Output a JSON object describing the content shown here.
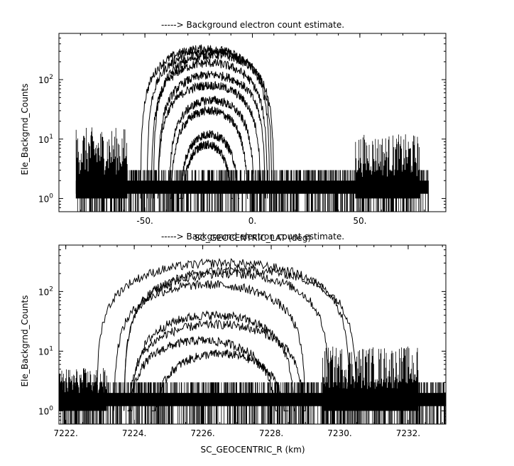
{
  "chart_data": [
    {
      "type": "line",
      "title": "-----> Background electron count estimate.",
      "xlabel": "SC_GEOCENTRIC_LAT (deg)",
      "ylabel": "Ele_Backgrnd_Counts",
      "xlim": [
        -90,
        90
      ],
      "ylim": [
        0.6,
        600
      ],
      "yscale": "log",
      "x_tick_values": [
        -50,
        0,
        50
      ],
      "x_tick_labels": [
        "-50.",
        "0.",
        "50."
      ],
      "y_tick_values": [
        1,
        10,
        100
      ],
      "y_tick_labels": [
        "10^0",
        "10^1",
        "10^2"
      ],
      "noise_floor": {
        "x_range": [
          -82,
          82
        ],
        "values": [
          1,
          2,
          3
        ]
      },
      "series": [
        {
          "center": -22,
          "half_width": 30,
          "peak": 330
        },
        {
          "center": -20,
          "half_width": 29,
          "peak": 300
        },
        {
          "center": -18,
          "half_width": 28,
          "peak": 260
        },
        {
          "center": -20,
          "half_width": 27,
          "peak": 190
        },
        {
          "center": -19,
          "half_width": 25,
          "peak": 120
        },
        {
          "center": -20,
          "half_width": 24,
          "peak": 80
        },
        {
          "center": -19,
          "half_width": 20,
          "peak": 45
        },
        {
          "center": -20,
          "half_width": 18,
          "peak": 30
        },
        {
          "center": -20,
          "half_width": 14,
          "peak": 12
        },
        {
          "center": -21,
          "half_width": 12,
          "peak": 8
        }
      ],
      "side_clusters": [
        {
          "x_range": [
            -82,
            -58
          ],
          "level": 10
        },
        {
          "x_range": [
            48,
            78
          ],
          "level": 8
        }
      ]
    },
    {
      "type": "line",
      "title": "-----> Background electron count estimate.",
      "xlabel": "SC_GEOCENTRIC_R (km)",
      "ylabel": "Ele_Backgrnd_Counts",
      "xlim": [
        7221.8,
        7233.1
      ],
      "ylim": [
        0.6,
        600
      ],
      "yscale": "log",
      "x_tick_values": [
        7222,
        7224,
        7226,
        7228,
        7230,
        7232
      ],
      "x_tick_labels": [
        "7222.",
        "7224.",
        "7226.",
        "7228.",
        "7230.",
        "7232."
      ],
      "y_tick_values": [
        1,
        10,
        100
      ],
      "y_tick_labels": [
        "10^0",
        "10^1",
        "10^2"
      ],
      "noise_floor": {
        "x_range": [
          7221.8,
          7233.1
        ],
        "values": [
          1,
          2,
          3
        ]
      },
      "series": [
        {
          "center": 7226.6,
          "half_width": 3.7,
          "peak": 300
        },
        {
          "center": 7227.1,
          "half_width": 3.4,
          "peak": 230
        },
        {
          "center": 7226.7,
          "half_width": 3.0,
          "peak": 200
        },
        {
          "center": 7226.2,
          "half_width": 2.8,
          "peak": 130
        },
        {
          "center": 7226.3,
          "half_width": 2.4,
          "peak": 40
        },
        {
          "center": 7226.4,
          "half_width": 2.6,
          "peak": 28
        },
        {
          "center": 7226.0,
          "half_width": 2.2,
          "peak": 15
        },
        {
          "center": 7226.5,
          "half_width": 2.0,
          "peak": 9
        }
      ],
      "side_clusters": [
        {
          "x_range": [
            7221.8,
            7223.2
          ],
          "level": 4
        },
        {
          "x_range": [
            7229.5,
            7232.3
          ],
          "level": 8
        }
      ]
    }
  ]
}
